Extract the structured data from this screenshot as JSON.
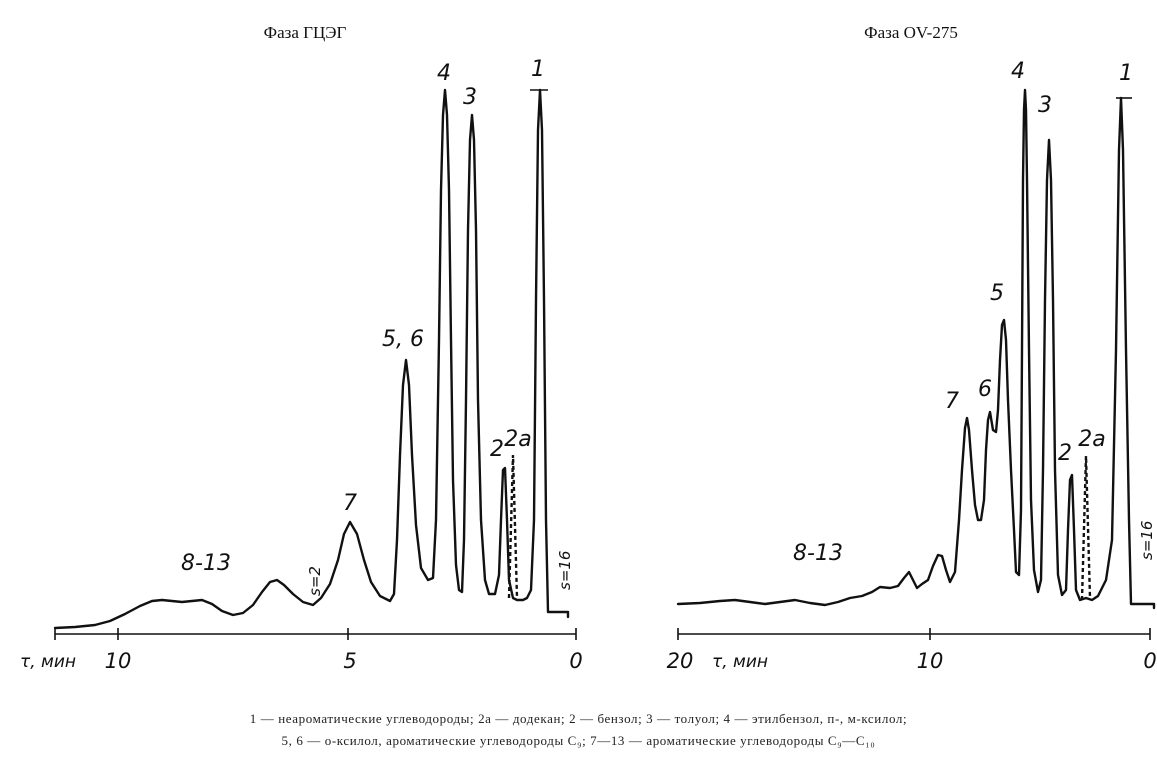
{
  "chart_data": [
    {
      "type": "line",
      "title": "Фаза ГЦЭГ",
      "xlabel": "τ, мин",
      "xlim": [
        11,
        0
      ],
      "x_ticks": [
        "10",
        "5",
        "0"
      ],
      "peaks": [
        {
          "label": "1",
          "x": 0.8,
          "height": 1.0
        },
        {
          "label": "2a",
          "x": 1.3,
          "height": 0.34,
          "dashed": true
        },
        {
          "label": "2",
          "x": 1.5,
          "height": 0.3
        },
        {
          "label": "3",
          "x": 2.3,
          "height": 0.96
        },
        {
          "label": "4",
          "x": 3.0,
          "height": 1.0
        },
        {
          "label": "5, 6",
          "x": 3.8,
          "height": 0.52
        },
        {
          "label": "7",
          "x": 4.9,
          "height": 0.2
        },
        {
          "label": "8-13",
          "x": 8.5,
          "height": 0.07
        }
      ],
      "annotations": [
        "s=16",
        "s=2"
      ]
    },
    {
      "type": "line",
      "title": "Фаза OV-275",
      "xlabel": "τ, мин",
      "xlim": [
        20,
        0
      ],
      "x_ticks": [
        "20",
        "10",
        "0"
      ],
      "peaks": [
        {
          "label": "1",
          "x": 0.9,
          "height": 1.0
        },
        {
          "label": "2a",
          "x": 2.8,
          "height": 0.29,
          "dashed": true
        },
        {
          "label": "2",
          "x": 3.2,
          "height": 0.26
        },
        {
          "label": "3",
          "x": 4.5,
          "height": 0.92
        },
        {
          "label": "4",
          "x": 5.6,
          "height": 1.0
        },
        {
          "label": "5",
          "x": 6.5,
          "height": 0.55
        },
        {
          "label": "6",
          "x": 7.0,
          "height": 0.38
        },
        {
          "label": "7",
          "x": 8.0,
          "height": 0.35
        },
        {
          "label": "8-13",
          "x": 14.0,
          "height": 0.05
        }
      ],
      "annotations": [
        "s=16"
      ]
    }
  ],
  "caption": {
    "line1": "1 — неароматические углеводороды; 2а — додекан; 2 — бензол; 3 — толуол; 4 — этилбензол, п-, м-ксилол;",
    "line2": "5, 6 — о-ксилол, ароматические углеводороды C₉; 7—13 — ароматические углеводороды C₉—C₁₀"
  }
}
